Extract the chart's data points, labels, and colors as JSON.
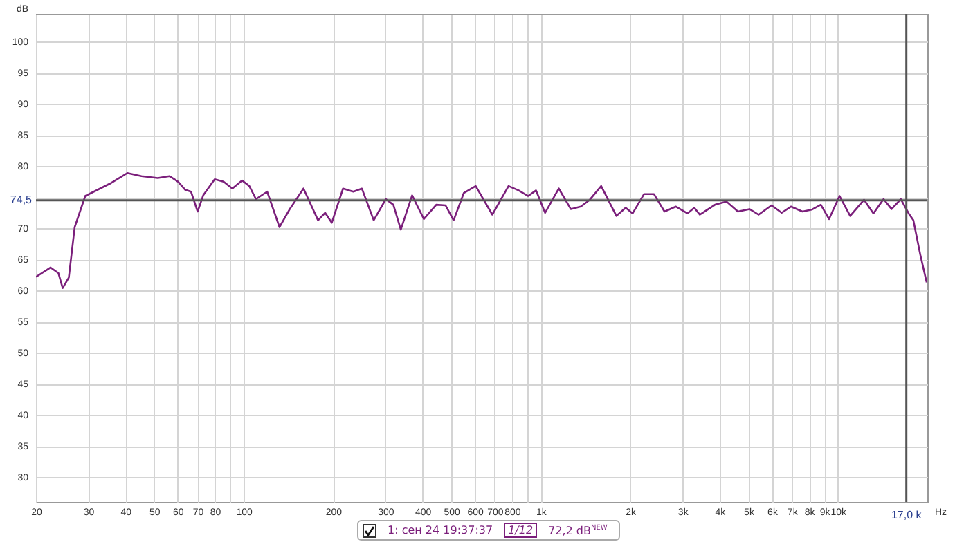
{
  "chart_data": {
    "type": "line",
    "xlabel": "Hz",
    "ylabel": "dB",
    "log": "x",
    "grid": true,
    "marker": "none",
    "line_style": "solid",
    "xlim": [
      20,
      20000
    ],
    "ylim": [
      26,
      104.5
    ],
    "xticks": [
      20,
      30,
      40,
      50,
      60,
      70,
      80,
      {
        "value": 90,
        "label": null
      },
      100,
      200,
      300,
      400,
      500,
      600,
      700,
      800,
      {
        "value": 900,
        "label": null
      },
      {
        "value": 1000,
        "label": "1k"
      },
      {
        "value": 2000,
        "label": "2k"
      },
      {
        "value": 3000,
        "label": "3k"
      },
      {
        "value": 4000,
        "label": "4k"
      },
      {
        "value": 5000,
        "label": "5k"
      },
      {
        "value": 6000,
        "label": "6k"
      },
      {
        "value": 7000,
        "label": "7k"
      },
      {
        "value": 8000,
        "label": "8k"
      },
      {
        "value": 9000,
        "label": "9k"
      },
      {
        "value": 10000,
        "label": "10k"
      }
    ],
    "yticks": [
      30,
      35,
      40,
      45,
      50,
      55,
      60,
      65,
      70,
      {
        "value": 75,
        "label": null
      },
      80,
      85,
      90,
      95,
      100
    ],
    "x": [
      20,
      22.4,
      23.8,
      24.6,
      25.8,
      27,
      29.3,
      35.5,
      40.6,
      45.3,
      51.4,
      56.3,
      60.2,
      63.6,
      66.5,
      70,
      73.1,
      79.9,
      85.6,
      91.6,
      98.8,
      104.5,
      110,
      120,
      132,
      143,
      159,
      178,
      188,
      198,
      216,
      234,
      250,
      274,
      301,
      319,
      338,
      369,
      404,
      445,
      478,
      509,
      551,
      604,
      687,
      779,
      842,
      907,
      964,
      1034,
      1150,
      1262,
      1364,
      1462,
      1597,
      1797,
      1931,
      2038,
      2225,
      2405,
      2609,
      2851,
      3117,
      3287,
      3430,
      3860,
      4220,
      4610,
      5040,
      5410,
      5980,
      6470,
      6950,
      7600,
      8160,
      8760,
      9340,
      10130,
      11000,
      12250,
      13170,
      14250,
      15160,
      16290,
      17310,
      17950,
      18930,
      19900
    ],
    "series": [
      {
        "color": "#7b1f7b",
        "values": [
          62.2,
          63.7,
          62.8,
          60.4,
          62.1,
          70.2,
          75.2,
          77.2,
          78.9,
          78.4,
          78.1,
          78.4,
          77.5,
          76.2,
          75.9,
          72.7,
          75.3,
          77.9,
          77.5,
          76.4,
          77.7,
          76.8,
          74.7,
          75.9,
          70.2,
          73.1,
          76.4,
          71.3,
          72.5,
          70.9,
          76.4,
          75.9,
          76.4,
          71.3,
          74.7,
          73.8,
          69.8,
          75.3,
          71.5,
          73.8,
          73.7,
          71.3,
          75.7,
          76.8,
          72.2,
          76.8,
          76.1,
          75.2,
          76.1,
          72.5,
          76.4,
          73.1,
          73.5,
          74.6,
          76.8,
          72.0,
          73.3,
          72.4,
          75.5,
          75.5,
          72.7,
          73.5,
          72.4,
          73.3,
          72.2,
          73.8,
          74.3,
          72.7,
          73.1,
          72.2,
          73.7,
          72.5,
          73.5,
          72.7,
          73.0,
          73.8,
          71.5,
          75.2,
          72.0,
          74.6,
          72.4,
          74.7,
          73.1,
          74.7,
          72.4,
          71.3,
          65.8,
          61.3
        ]
      }
    ],
    "ref_lines": [
      {
        "axis": "y",
        "value": 74.5,
        "label": "74,5",
        "color": "#555555"
      },
      {
        "axis": "x",
        "value": 17000,
        "label": "17,0 k",
        "color": "#555555"
      }
    ],
    "annotations": [
      "1: сен 24 19:37:37",
      "1/12",
      "72,2 dB$^{NEW}$"
    ]
  }
}
